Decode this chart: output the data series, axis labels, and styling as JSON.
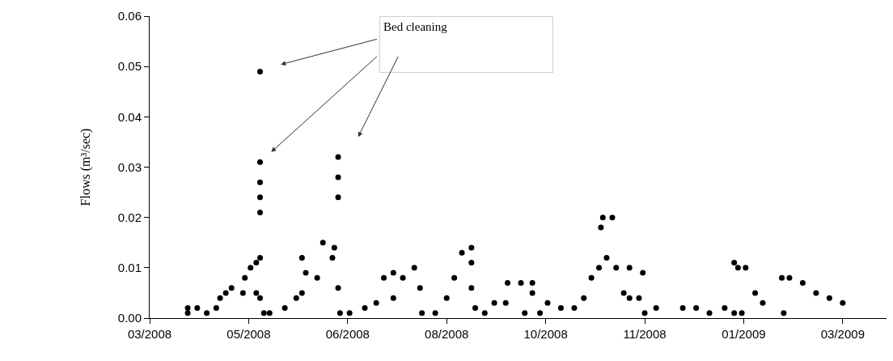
{
  "chart_data": {
    "type": "scatter",
    "ylabel": "Flows (m³/sec)",
    "annotations": [
      "Bed cleaning"
    ],
    "x": [
      "2008-03-30",
      "2008-03-30",
      "2008-04-04",
      "2008-04-09",
      "2008-04-14",
      "2008-04-16",
      "2008-04-19",
      "2008-04-22",
      "2008-04-28",
      "2008-04-29",
      "2008-05-02",
      "2008-05-05",
      "2008-05-05",
      "2008-05-07",
      "2008-05-07",
      "2008-05-07",
      "2008-05-07",
      "2008-05-07",
      "2008-05-07",
      "2008-05-07",
      "2008-05-09",
      "2008-05-12",
      "2008-05-20",
      "2008-05-26",
      "2008-05-29",
      "2008-05-29",
      "2008-05-31",
      "2008-06-06",
      "2008-06-09",
      "2008-06-14",
      "2008-06-15",
      "2008-06-17",
      "2008-06-17",
      "2008-06-17",
      "2008-06-17",
      "2008-06-18",
      "2008-06-23",
      "2008-07-01",
      "2008-07-07",
      "2008-07-11",
      "2008-07-16",
      "2008-07-16",
      "2008-07-21",
      "2008-07-27",
      "2008-07-30",
      "2008-07-31",
      "2008-08-07",
      "2008-08-13",
      "2008-08-17",
      "2008-08-21",
      "2008-08-26",
      "2008-08-26",
      "2008-08-26",
      "2008-08-28",
      "2008-09-02",
      "2008-09-07",
      "2008-09-13",
      "2008-09-14",
      "2008-09-21",
      "2008-09-23",
      "2008-09-27",
      "2008-09-27",
      "2008-10-01",
      "2008-10-05",
      "2008-10-12",
      "2008-10-19",
      "2008-10-24",
      "2008-10-28",
      "2008-11-01",
      "2008-11-02",
      "2008-11-03",
      "2008-11-05",
      "2008-11-08",
      "2008-11-10",
      "2008-11-14",
      "2008-11-17",
      "2008-11-17",
      "2008-11-22",
      "2008-11-24",
      "2008-11-25",
      "2008-12-01",
      "2008-12-15",
      "2008-12-22",
      "2008-12-29",
      "2009-01-06",
      "2009-01-11",
      "2009-01-11",
      "2009-01-13",
      "2009-01-15",
      "2009-01-17",
      "2009-01-22",
      "2009-01-26",
      "2009-02-05",
      "2009-02-06",
      "2009-02-09",
      "2009-02-16",
      "2009-02-23",
      "2009-03-02",
      "2009-03-09"
    ],
    "values": [
      0.001,
      0.002,
      0.002,
      0.001,
      0.002,
      0.004,
      0.005,
      0.006,
      0.005,
      0.008,
      0.01,
      0.011,
      0.005,
      0.012,
      0.021,
      0.024,
      0.027,
      0.031,
      0.049,
      0.004,
      0.001,
      0.001,
      0.002,
      0.004,
      0.005,
      0.012,
      0.009,
      0.008,
      0.015,
      0.012,
      0.014,
      0.024,
      0.028,
      0.032,
      0.006,
      0.001,
      0.001,
      0.002,
      0.003,
      0.008,
      0.009,
      0.004,
      0.008,
      0.01,
      0.006,
      0.001,
      0.001,
      0.004,
      0.008,
      0.013,
      0.014,
      0.011,
      0.006,
      0.002,
      0.001,
      0.003,
      0.003,
      0.007,
      0.007,
      0.001,
      0.007,
      0.005,
      0.001,
      0.003,
      0.002,
      0.002,
      0.004,
      0.008,
      0.01,
      0.018,
      0.02,
      0.012,
      0.02,
      0.01,
      0.005,
      0.01,
      0.004,
      0.004,
      0.009,
      0.001,
      0.002,
      0.002,
      0.002,
      0.001,
      0.002,
      0.011,
      0.001,
      0.01,
      0.001,
      0.01,
      0.005,
      0.003,
      0.008,
      0.001,
      0.008,
      0.007,
      0.005,
      0.004,
      0.003
    ],
    "color": "#000000",
    "marker": "circle",
    "xlim": [
      "2008-03-10",
      "2009-04-01"
    ],
    "xticks": [
      {
        "value": "2008-03-10",
        "label": "03/2008"
      },
      {
        "value": "2008-05-01",
        "label": "05/2008"
      },
      {
        "value": "2008-06-22",
        "label": "06/2008"
      },
      {
        "value": "2008-08-13",
        "label": "08/2008"
      },
      {
        "value": "2008-10-04",
        "label": "10/2008"
      },
      {
        "value": "2008-11-25",
        "label": "11/2008"
      },
      {
        "value": "2009-01-16",
        "label": "01/2009"
      },
      {
        "value": "2009-03-09",
        "label": "03/2009"
      }
    ],
    "ylim": [
      0,
      0.06
    ],
    "yticks": [
      {
        "value": 0,
        "label": "0.00"
      },
      {
        "value": 0.01,
        "label": "0.01"
      },
      {
        "value": 0.02,
        "label": "0.02"
      },
      {
        "value": 0.03,
        "label": "0.03"
      },
      {
        "value": 0.04,
        "label": "0.04"
      },
      {
        "value": 0.05,
        "label": "0.05"
      },
      {
        "value": 0.06,
        "label": "0.06"
      }
    ],
    "grid": false
  }
}
